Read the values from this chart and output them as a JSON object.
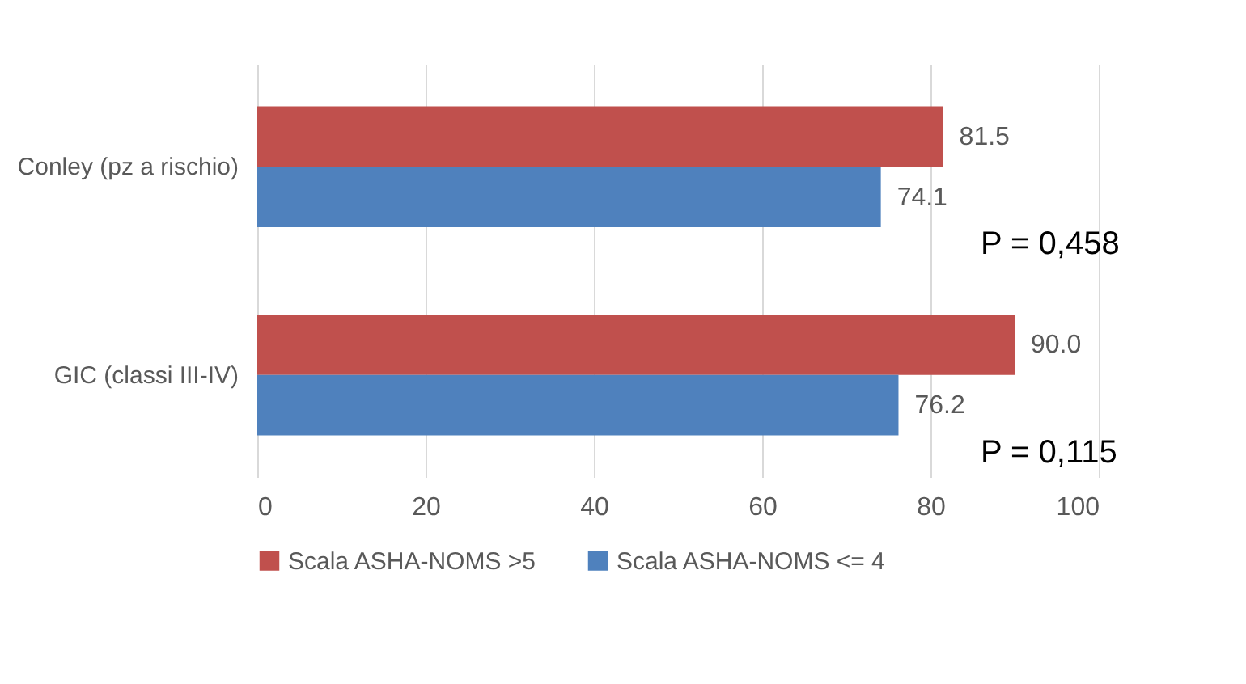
{
  "chart_data": {
    "type": "bar",
    "orientation": "horizontal",
    "categories": [
      "Conley (pz a rischio)",
      "GIC (classi III-IV)"
    ],
    "series": [
      {
        "name": "Scala ASHA-NOMS >5",
        "color": "#c0504d",
        "values": [
          81.5,
          90.0
        ],
        "value_labels": [
          "81.5",
          "90.0"
        ]
      },
      {
        "name": "Scala ASHA-NOMS <= 4",
        "color": "#4f81bd",
        "values": [
          74.1,
          76.2
        ],
        "value_labels": [
          "74.1",
          "76.2"
        ]
      }
    ],
    "xlim": [
      0,
      100
    ],
    "xticks": [
      0,
      20,
      40,
      60,
      80,
      100
    ],
    "grid": "x",
    "legend": "bottom",
    "annotations": [
      "P = 0,458",
      "P = 0,115"
    ]
  }
}
